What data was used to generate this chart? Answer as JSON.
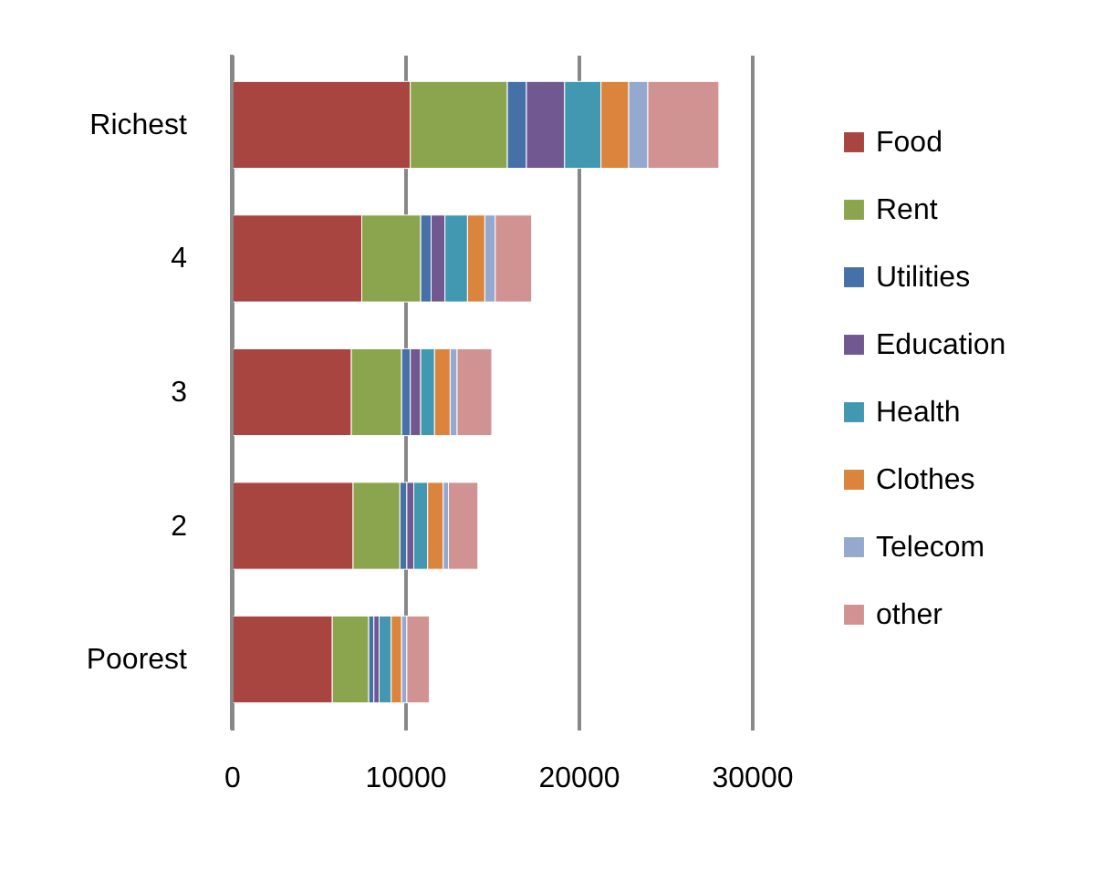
{
  "chart_data": {
    "type": "bar",
    "orientation": "horizontal",
    "stacked": true,
    "categories": [
      "Richest",
      "4",
      "3",
      "2",
      "Poorest"
    ],
    "series": [
      {
        "name": "Food",
        "color": "#a84541",
        "values": [
          10300,
          7500,
          6900,
          7000,
          5800
        ]
      },
      {
        "name": "Rent",
        "color": "#8ba54e",
        "values": [
          5600,
          3400,
          2900,
          2700,
          2100
        ]
      },
      {
        "name": "Utilities",
        "color": "#4571a8",
        "values": [
          1100,
          600,
          500,
          400,
          300
        ]
      },
      {
        "name": "Education",
        "color": "#725890",
        "values": [
          2200,
          800,
          600,
          400,
          300
        ]
      },
      {
        "name": "Health",
        "color": "#4298b0",
        "values": [
          2100,
          1300,
          800,
          800,
          700
        ]
      },
      {
        "name": "Clothes",
        "color": "#db843d",
        "values": [
          1600,
          1000,
          900,
          900,
          600
        ]
      },
      {
        "name": "Telecom",
        "color": "#93a9cf",
        "values": [
          1100,
          600,
          400,
          300,
          300
        ]
      },
      {
        "name": "other",
        "color": "#d19392",
        "values": [
          4100,
          2100,
          2000,
          1700,
          1300
        ]
      }
    ],
    "xlim": [
      0,
      30000
    ],
    "xticks": [
      0,
      {
        "value": 10000,
        "label": "10000"
      },
      {
        "value": 20000,
        "label": "20000"
      },
      {
        "value": 30000,
        "label": "30000"
      }
    ],
    "grid": "x",
    "legend": "right"
  }
}
